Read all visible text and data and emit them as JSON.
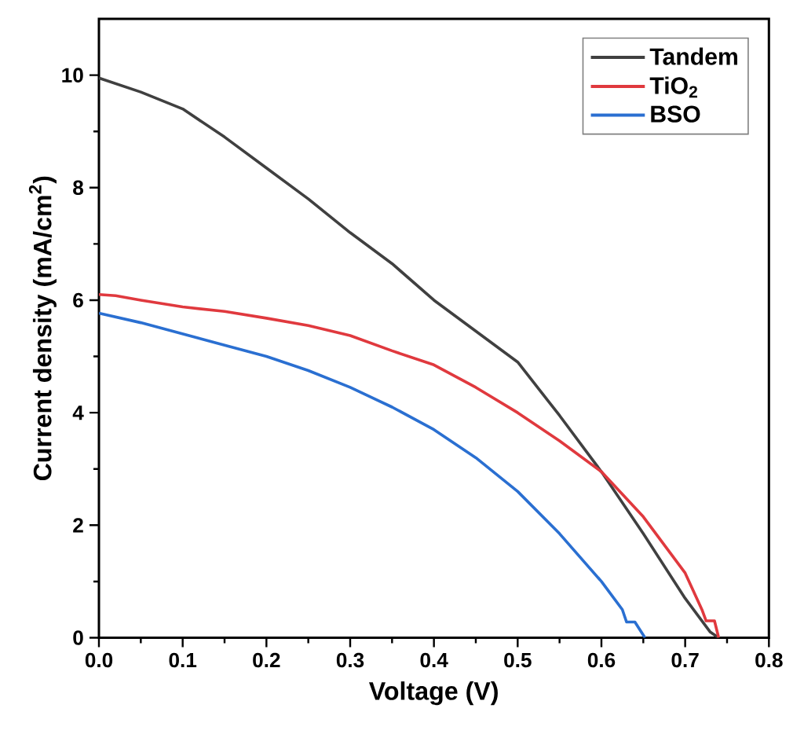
{
  "chart_data": {
    "type": "line",
    "xlabel": "Voltage (V)",
    "ylabel": "Current density (mA/cm$^{2}$)",
    "xlim": [
      0,
      0.8
    ],
    "ylim": [
      0,
      11
    ],
    "xticks": [
      {
        "value": 0,
        "label": "0.0"
      },
      {
        "value": 0.1,
        "label": "0.1"
      },
      {
        "value": 0.2,
        "label": "0.2"
      },
      {
        "value": 0.3,
        "label": "0.3"
      },
      {
        "value": 0.4,
        "label": "0.4"
      },
      {
        "value": 0.5,
        "label": "0.5"
      },
      {
        "value": 0.6,
        "label": "0.6"
      },
      {
        "value": 0.7,
        "label": "0.7"
      },
      {
        "value": 0.8,
        "label": "0.8"
      }
    ],
    "yticks": [
      0,
      2,
      4,
      6,
      8,
      10
    ],
    "grid": false,
    "legend": "top right",
    "marker": "none",
    "line_style": "solid",
    "x": [
      0,
      0.05,
      0.1,
      0.15,
      0.2,
      0.25,
      0.3,
      0.35,
      0.4,
      0.45,
      0.5,
      0.55,
      0.6,
      0.65,
      0.7,
      0.73,
      0.74
    ],
    "series": [
      {
        "name": "Tandem",
        "color": "#404040",
        "values": [
          9.95,
          9.7,
          9.4,
          8.9,
          8.35,
          7.8,
          7.2,
          6.65,
          6.0,
          5.45,
          4.9,
          3.95,
          2.95,
          1.85,
          0.7,
          0.1,
          0
        ]
      },
      {
        "name": "TiO$_{2}$",
        "color": "#e0393e",
        "x": [
          0,
          0.02,
          0.05,
          0.1,
          0.15,
          0.2,
          0.25,
          0.3,
          0.35,
          0.4,
          0.45,
          0.5,
          0.55,
          0.6,
          0.65,
          0.7,
          0.72,
          0.725,
          0.735,
          0.74
        ],
        "values": [
          6.1,
          6.08,
          6.0,
          5.88,
          5.8,
          5.68,
          5.55,
          5.37,
          5.1,
          4.85,
          4.45,
          4.0,
          3.5,
          2.95,
          2.15,
          1.15,
          0.5,
          0.3,
          0.3,
          0
        ]
      },
      {
        "name": "BSO",
        "color": "#2a6fd1",
        "x": [
          0,
          0.05,
          0.1,
          0.15,
          0.2,
          0.25,
          0.3,
          0.35,
          0.4,
          0.45,
          0.5,
          0.55,
          0.6,
          0.625,
          0.63,
          0.64,
          0.652
        ],
        "values": [
          5.77,
          5.6,
          5.4,
          5.2,
          5.0,
          4.75,
          4.45,
          4.1,
          3.7,
          3.2,
          2.6,
          1.85,
          1.0,
          0.5,
          0.28,
          0.28,
          0
        ]
      }
    ]
  }
}
